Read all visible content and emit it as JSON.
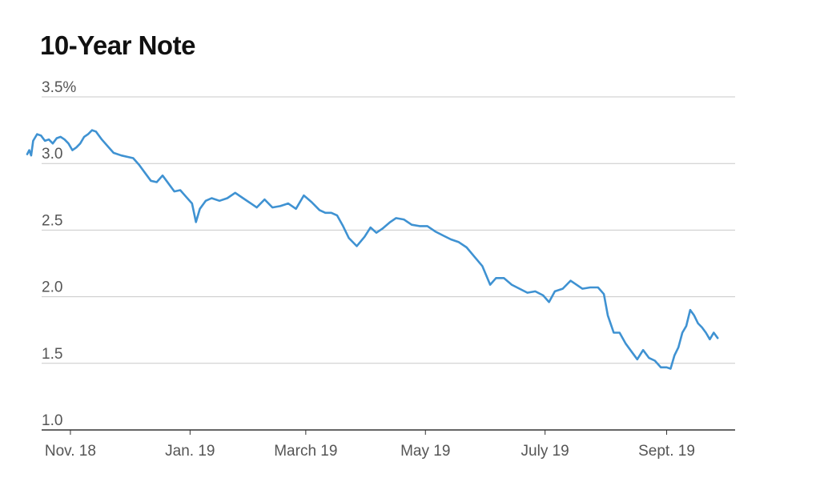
{
  "chart_data": {
    "type": "line",
    "title": "10-Year Note",
    "xlabel": "",
    "ylabel": "",
    "ylim": [
      1.0,
      3.5
    ],
    "yticks": [
      {
        "value": 3.5,
        "label": "3.5%"
      },
      {
        "value": 3.0,
        "label": "3.0"
      },
      {
        "value": 2.5,
        "label": "2.5"
      },
      {
        "value": 2.0,
        "label": "2.0"
      },
      {
        "value": 1.5,
        "label": "1.5"
      },
      {
        "value": 1.0,
        "label": "1.0"
      }
    ],
    "xlim": [
      "2018-10-01",
      "2019-10-01"
    ],
    "xticks": [
      {
        "date": "2018-11-01",
        "label": "Nov. 18"
      },
      {
        "date": "2019-01-01",
        "label": "Jan. 19"
      },
      {
        "date": "2019-03-01",
        "label": "March 19"
      },
      {
        "date": "2019-05-01",
        "label": "May 19"
      },
      {
        "date": "2019-07-01",
        "label": "July 19"
      },
      {
        "date": "2019-09-01",
        "label": "Sept. 19"
      }
    ],
    "grid": true,
    "color": "#3f92d2",
    "series": [
      {
        "values": [
          [
            "2018-10-10",
            3.07
          ],
          [
            "2018-10-11",
            3.1
          ],
          [
            "2018-10-12",
            3.06
          ],
          [
            "2018-10-13",
            3.17
          ],
          [
            "2018-10-15",
            3.22
          ],
          [
            "2018-10-17",
            3.21
          ],
          [
            "2018-10-19",
            3.17
          ],
          [
            "2018-10-21",
            3.18
          ],
          [
            "2018-10-23",
            3.15
          ],
          [
            "2018-10-25",
            3.19
          ],
          [
            "2018-10-27",
            3.2
          ],
          [
            "2018-10-29",
            3.18
          ],
          [
            "2018-10-31",
            3.15
          ],
          [
            "2018-11-02",
            3.1
          ],
          [
            "2018-11-04",
            3.12
          ],
          [
            "2018-11-06",
            3.15
          ],
          [
            "2018-11-08",
            3.2
          ],
          [
            "2018-11-10",
            3.22
          ],
          [
            "2018-11-12",
            3.25
          ],
          [
            "2018-11-14",
            3.24
          ],
          [
            "2018-11-17",
            3.18
          ],
          [
            "2018-11-20",
            3.13
          ],
          [
            "2018-11-23",
            3.08
          ],
          [
            "2018-11-27",
            3.06
          ],
          [
            "2018-11-30",
            3.05
          ],
          [
            "2018-12-03",
            3.04
          ],
          [
            "2018-12-06",
            2.99
          ],
          [
            "2018-12-09",
            2.93
          ],
          [
            "2018-12-12",
            2.87
          ],
          [
            "2018-12-15",
            2.86
          ],
          [
            "2018-12-18",
            2.91
          ],
          [
            "2018-12-21",
            2.85
          ],
          [
            "2018-12-24",
            2.79
          ],
          [
            "2018-12-27",
            2.8
          ],
          [
            "2018-12-30",
            2.75
          ],
          [
            "2019-01-02",
            2.7
          ],
          [
            "2019-01-04",
            2.56
          ],
          [
            "2019-01-06",
            2.66
          ],
          [
            "2019-01-09",
            2.72
          ],
          [
            "2019-01-12",
            2.74
          ],
          [
            "2019-01-16",
            2.72
          ],
          [
            "2019-01-20",
            2.74
          ],
          [
            "2019-01-24",
            2.78
          ],
          [
            "2019-01-28",
            2.74
          ],
          [
            "2019-02-01",
            2.7
          ],
          [
            "2019-02-04",
            2.67
          ],
          [
            "2019-02-08",
            2.73
          ],
          [
            "2019-02-12",
            2.67
          ],
          [
            "2019-02-16",
            2.68
          ],
          [
            "2019-02-20",
            2.7
          ],
          [
            "2019-02-24",
            2.66
          ],
          [
            "2019-02-28",
            2.76
          ],
          [
            "2019-03-04",
            2.71
          ],
          [
            "2019-03-08",
            2.65
          ],
          [
            "2019-03-11",
            2.63
          ],
          [
            "2019-03-14",
            2.63
          ],
          [
            "2019-03-17",
            2.61
          ],
          [
            "2019-03-20",
            2.53
          ],
          [
            "2019-03-23",
            2.44
          ],
          [
            "2019-03-27",
            2.38
          ],
          [
            "2019-03-31",
            2.45
          ],
          [
            "2019-04-03",
            2.52
          ],
          [
            "2019-04-06",
            2.48
          ],
          [
            "2019-04-09",
            2.51
          ],
          [
            "2019-04-13",
            2.56
          ],
          [
            "2019-04-16",
            2.59
          ],
          [
            "2019-04-20",
            2.58
          ],
          [
            "2019-04-24",
            2.54
          ],
          [
            "2019-04-28",
            2.53
          ],
          [
            "2019-05-02",
            2.53
          ],
          [
            "2019-05-06",
            2.49
          ],
          [
            "2019-05-10",
            2.46
          ],
          [
            "2019-05-14",
            2.43
          ],
          [
            "2019-05-18",
            2.41
          ],
          [
            "2019-05-22",
            2.37
          ],
          [
            "2019-05-26",
            2.3
          ],
          [
            "2019-05-30",
            2.23
          ],
          [
            "2019-06-03",
            2.09
          ],
          [
            "2019-06-06",
            2.14
          ],
          [
            "2019-06-10",
            2.14
          ],
          [
            "2019-06-14",
            2.09
          ],
          [
            "2019-06-18",
            2.06
          ],
          [
            "2019-06-22",
            2.03
          ],
          [
            "2019-06-26",
            2.04
          ],
          [
            "2019-06-30",
            2.01
          ],
          [
            "2019-07-03",
            1.96
          ],
          [
            "2019-07-06",
            2.04
          ],
          [
            "2019-07-10",
            2.06
          ],
          [
            "2019-07-14",
            2.12
          ],
          [
            "2019-07-17",
            2.09
          ],
          [
            "2019-07-20",
            2.06
          ],
          [
            "2019-07-24",
            2.07
          ],
          [
            "2019-07-28",
            2.07
          ],
          [
            "2019-07-31",
            2.02
          ],
          [
            "2019-08-02",
            1.86
          ],
          [
            "2019-08-05",
            1.73
          ],
          [
            "2019-08-08",
            1.73
          ],
          [
            "2019-08-11",
            1.65
          ],
          [
            "2019-08-14",
            1.59
          ],
          [
            "2019-08-17",
            1.53
          ],
          [
            "2019-08-20",
            1.6
          ],
          [
            "2019-08-23",
            1.54
          ],
          [
            "2019-08-26",
            1.52
          ],
          [
            "2019-08-29",
            1.47
          ],
          [
            "2019-09-01",
            1.47
          ],
          [
            "2019-09-03",
            1.46
          ],
          [
            "2019-09-05",
            1.56
          ],
          [
            "2019-09-07",
            1.62
          ],
          [
            "2019-09-09",
            1.73
          ],
          [
            "2019-09-11",
            1.78
          ],
          [
            "2019-09-13",
            1.9
          ],
          [
            "2019-09-15",
            1.86
          ],
          [
            "2019-09-17",
            1.8
          ],
          [
            "2019-09-19",
            1.77
          ],
          [
            "2019-09-21",
            1.73
          ],
          [
            "2019-09-23",
            1.68
          ],
          [
            "2019-09-25",
            1.73
          ],
          [
            "2019-09-27",
            1.69
          ]
        ]
      }
    ]
  }
}
